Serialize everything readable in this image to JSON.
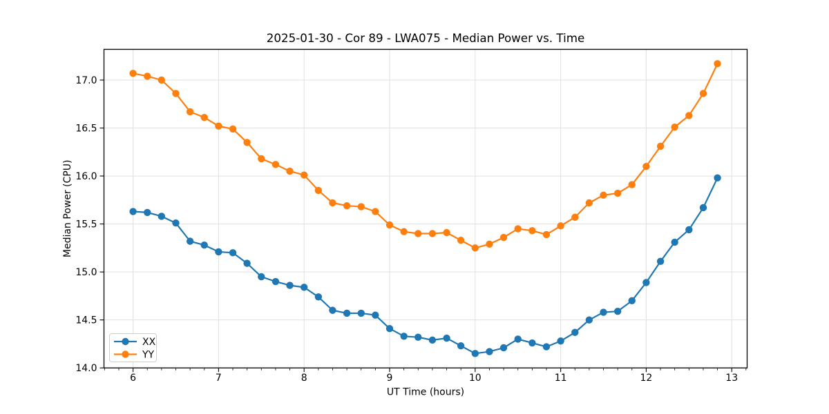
{
  "chart_data": {
    "type": "line",
    "title": "2025-01-30 - Cor 89 - LWA075 - Median Power vs. Time",
    "xlabel": "UT Time (hours)",
    "ylabel": "Median Power (CPU)",
    "xlim": [
      5.66,
      13.18
    ],
    "ylim": [
      14.0,
      17.32
    ],
    "grid": true,
    "legend_position": "lower left",
    "x_ticks": [
      6,
      7,
      8,
      9,
      10,
      11,
      12,
      13
    ],
    "x_tick_labels": [
      "6",
      "7",
      "8",
      "9",
      "10",
      "11",
      "12",
      "13"
    ],
    "y_ticks": [
      14.0,
      14.5,
      15.0,
      15.5,
      16.0,
      16.5,
      17.0
    ],
    "y_tick_labels": [
      "14.0",
      "14.5",
      "15.0",
      "15.5",
      "16.0",
      "16.5",
      "17.0"
    ],
    "x_minor_tick_step": 0.16667,
    "x": [
      6.0,
      6.167,
      6.333,
      6.5,
      6.667,
      6.833,
      7.0,
      7.167,
      7.333,
      7.5,
      7.667,
      7.833,
      8.0,
      8.167,
      8.333,
      8.5,
      8.667,
      8.833,
      9.0,
      9.167,
      9.333,
      9.5,
      9.667,
      9.833,
      10.0,
      10.167,
      10.333,
      10.5,
      10.667,
      10.833,
      11.0,
      11.167,
      11.333,
      11.5,
      11.667,
      11.833,
      12.0,
      12.167,
      12.333,
      12.5,
      12.667,
      12.833
    ],
    "series": [
      {
        "name": "XX",
        "color": "#1f77b4",
        "values": [
          15.63,
          15.62,
          15.58,
          15.51,
          15.32,
          15.28,
          15.21,
          15.2,
          15.09,
          14.95,
          14.9,
          14.86,
          14.84,
          14.74,
          14.6,
          14.57,
          14.57,
          14.55,
          14.41,
          14.33,
          14.32,
          14.29,
          14.31,
          14.23,
          14.15,
          14.17,
          14.21,
          14.3,
          14.26,
          14.22,
          14.28,
          14.37,
          14.5,
          14.58,
          14.59,
          14.7,
          14.89,
          15.11,
          15.31,
          15.44,
          15.67,
          15.98
        ]
      },
      {
        "name": "YY",
        "color": "#ff7f0e",
        "values": [
          17.07,
          17.04,
          17.0,
          16.86,
          16.67,
          16.61,
          16.52,
          16.49,
          16.35,
          16.18,
          16.12,
          16.05,
          16.01,
          15.85,
          15.72,
          15.69,
          15.68,
          15.63,
          15.49,
          15.42,
          15.4,
          15.4,
          15.41,
          15.33,
          15.25,
          15.29,
          15.36,
          15.45,
          15.43,
          15.39,
          15.48,
          15.57,
          15.72,
          15.8,
          15.82,
          15.91,
          16.1,
          16.31,
          16.51,
          16.63,
          16.86,
          17.17
        ]
      }
    ],
    "style": {
      "grid_color": "#e0e0e0",
      "spine_color": "#000000",
      "marker_radius": 5.2,
      "line_width": 2.2
    }
  }
}
